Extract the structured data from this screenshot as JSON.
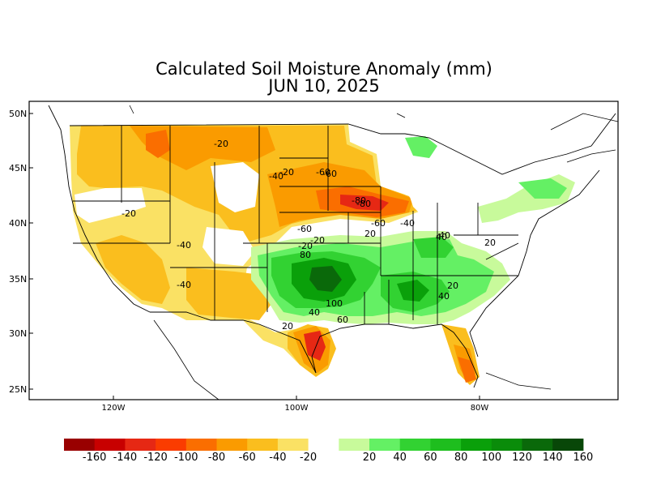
{
  "title": {
    "line1": "Calculated Soil Moisture Anomaly (mm)",
    "line2": "JUN 10, 2025"
  },
  "axes": {
    "lat_labels": [
      "50N",
      "45N",
      "40N",
      "35N",
      "30N",
      "25N"
    ],
    "lon_labels": [
      "120W",
      "100W",
      "80W"
    ]
  },
  "contour_labels": [
    "-20",
    "-20",
    "-20",
    "-40",
    "-60",
    "-80",
    "-60",
    "-40",
    "-20",
    "-60",
    "-40",
    "-40",
    "-40",
    "-20",
    "-60",
    "-80",
    "20",
    "20",
    "20",
    "40",
    "40",
    "40",
    "60",
    "80",
    "100",
    "20"
  ],
  "legend": {
    "colors": [
      "#990000",
      "#c80000",
      "#e62814",
      "#fa3c00",
      "#fa6e00",
      "#fa9b00",
      "#fabe1e",
      "#fae164",
      "#ffffff",
      "#c8fa9b",
      "#64f064",
      "#32d232",
      "#1ebe1e",
      "#0aa00a",
      "#0a8c0a",
      "#0a690a",
      "#084708"
    ],
    "labels": [
      "-160",
      "-140",
      "-120",
      "-100",
      "-80",
      "-60",
      "-40",
      "-20",
      "20",
      "40",
      "60",
      "80",
      "100",
      "120",
      "140",
      "160"
    ]
  },
  "colors": {
    "dry_light": "#fae164",
    "dry_mid": "#fabe1e",
    "dry_orange": "#fa9b00",
    "dry_deep": "#fa6e00",
    "dry_red": "#e62814",
    "wet_light": "#c8fa9b",
    "wet_mid": "#64f064",
    "wet_green": "#32d232",
    "wet_deep": "#0aa00a",
    "wet_dark": "#0a690a"
  }
}
